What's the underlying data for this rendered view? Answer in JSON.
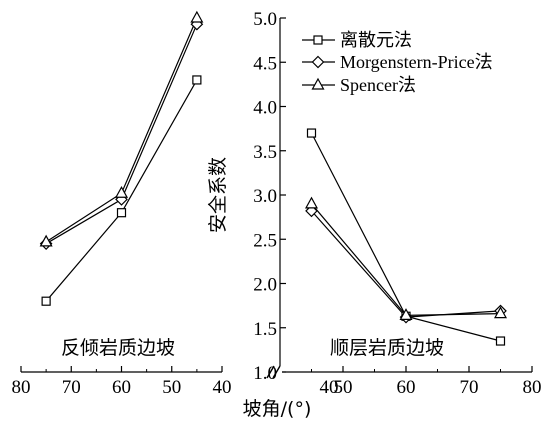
{
  "chart_data": {
    "type": "line",
    "ylabel": "安全系数",
    "xlabel": "坡角/(°)",
    "ylim": [
      1.0,
      5.0
    ],
    "yticks": [
      "1.0",
      "1.5",
      "2.0",
      "2.5",
      "3.0",
      "3.5",
      "4.0",
      "4.5",
      "5.0"
    ],
    "legend_position": "top-right",
    "panels": [
      {
        "label": "反倾岩质边坡",
        "xlim": [
          80,
          40
        ],
        "xticks": [
          "80",
          "70",
          "60",
          "50",
          "40"
        ],
        "x": [
          75,
          60,
          45
        ],
        "series": [
          {
            "name": "离散元法",
            "marker": "square",
            "values": [
              1.8,
              2.8,
              4.3
            ]
          },
          {
            "name": "Morgenstern-Price法",
            "marker": "diamond",
            "values": [
              2.45,
              2.95,
              4.93
            ]
          },
          {
            "name": "Spencer法",
            "marker": "triangle",
            "values": [
              2.47,
              3.02,
              5.0
            ]
          }
        ]
      },
      {
        "label": "顺层岩质边坡",
        "xlim": [
          40,
          80
        ],
        "xticks": [
          "40",
          "50",
          "60",
          "70",
          "80"
        ],
        "x": [
          45,
          60,
          75
        ],
        "series": [
          {
            "name": "离散元法",
            "marker": "square",
            "values": [
              3.7,
              1.63,
              1.35
            ]
          },
          {
            "name": "Morgenstern-Price法",
            "marker": "diamond",
            "values": [
              2.82,
              1.62,
              1.69
            ]
          },
          {
            "name": "Spencer法",
            "marker": "triangle",
            "values": [
              2.9,
              1.64,
              1.66
            ]
          }
        ]
      }
    ]
  }
}
